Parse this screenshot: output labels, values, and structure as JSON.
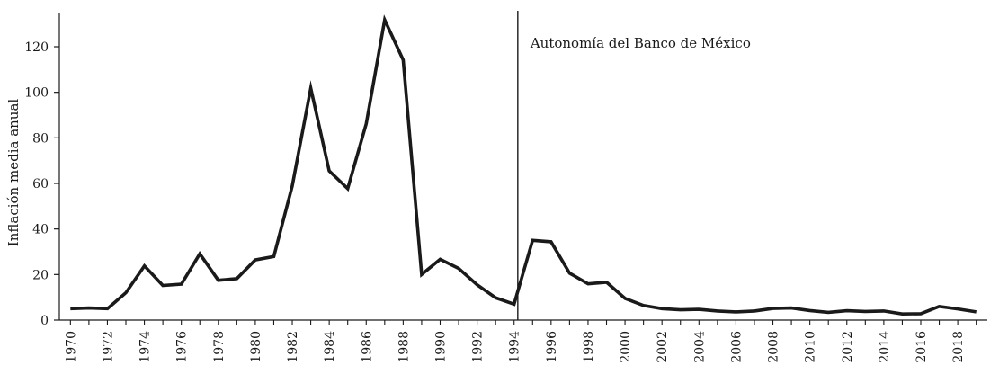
{
  "chart_data": {
    "type": "line",
    "title": "",
    "xlabel": "",
    "ylabel": "Inflación media anual",
    "xlim": [
      1970,
      2019
    ],
    "ylim": [
      0,
      135
    ],
    "yticks": [
      0,
      20,
      40,
      60,
      80,
      100,
      120
    ],
    "xticks": [
      1970,
      1972,
      1974,
      1976,
      1978,
      1980,
      1982,
      1984,
      1986,
      1988,
      1990,
      1992,
      1994,
      1996,
      1998,
      2000,
      2002,
      2004,
      2006,
      2008,
      2010,
      2012,
      2014,
      2016,
      2018
    ],
    "grid": false,
    "line_color": "#1a1a1a",
    "annotation": {
      "x": 1994.2,
      "label": "Autonomía del Banco de México"
    },
    "series": [
      {
        "x": [
          1970,
          1971,
          1972,
          1973,
          1974,
          1975,
          1976,
          1977,
          1978,
          1979,
          1980,
          1981,
          1982,
          1983,
          1984,
          1985,
          1986,
          1987,
          1988,
          1989,
          1990,
          1991,
          1992,
          1993,
          1994,
          1995,
          1996,
          1997,
          1998,
          1999,
          2000,
          2001,
          2002,
          2003,
          2004,
          2005,
          2006,
          2007,
          2008,
          2009,
          2010,
          2011,
          2012,
          2013,
          2014,
          2015,
          2016,
          2017,
          2018,
          2019
        ],
        "values": [
          5,
          5.3,
          5,
          12,
          23.8,
          15.2,
          15.8,
          29.1,
          17.5,
          18.2,
          26.4,
          27.9,
          58.9,
          101.8,
          65.5,
          57.7,
          86.2,
          131.8,
          114.2,
          20,
          26.7,
          22.7,
          15.5,
          9.8,
          7,
          35,
          34.4,
          20.6,
          15.9,
          16.6,
          9.5,
          6.4,
          5,
          4.5,
          4.7,
          4,
          3.6,
          4,
          5.1,
          5.3,
          4.2,
          3.4,
          4.1,
          3.8,
          4,
          2.7,
          2.8,
          6,
          4.9,
          3.6
        ]
      }
    ]
  }
}
